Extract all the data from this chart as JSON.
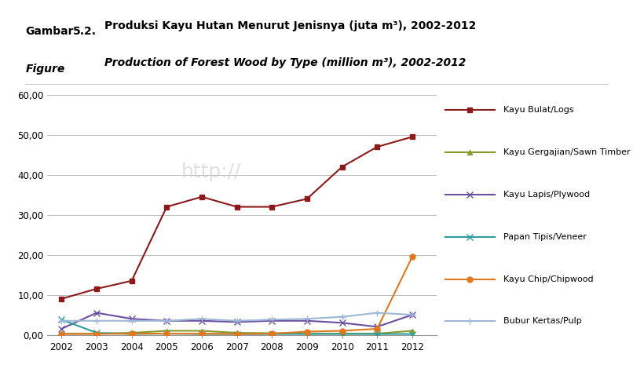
{
  "years": [
    2002,
    2003,
    2004,
    2005,
    2006,
    2007,
    2008,
    2009,
    2010,
    2011,
    2012
  ],
  "series": [
    {
      "name": "Kayu Bulat/Logs",
      "values": [
        9.0,
        11.5,
        13.5,
        32.0,
        34.5,
        32.0,
        32.0,
        34.0,
        42.0,
        47.0,
        49.5
      ],
      "color": "#8B1A1A",
      "marker": "s",
      "linewidth": 1.5,
      "markersize": 5
    },
    {
      "name": "Kayu Gergajian/Sawn Timber",
      "values": [
        0.3,
        0.3,
        0.5,
        1.0,
        1.0,
        0.5,
        0.4,
        0.3,
        0.3,
        0.3,
        1.0
      ],
      "color": "#8A9A2A",
      "marker": "^",
      "linewidth": 1.5,
      "markersize": 5
    },
    {
      "name": "Kayu Lapis/Plywood",
      "values": [
        1.5,
        5.5,
        4.0,
        3.5,
        3.5,
        3.2,
        3.5,
        3.5,
        3.0,
        2.0,
        5.0
      ],
      "color": "#6B4FA0",
      "marker": "x",
      "linewidth": 1.5,
      "markersize": 6
    },
    {
      "name": "Papan Tipis/Veneer",
      "values": [
        3.8,
        0.5,
        0.2,
        0.3,
        0.2,
        0.2,
        0.2,
        0.2,
        0.2,
        0.2,
        0.2
      ],
      "color": "#2A9D9D",
      "marker": "x",
      "linewidth": 1.5,
      "markersize": 6
    },
    {
      "name": "Kayu Chip/Chipwood",
      "values": [
        0.2,
        0.2,
        0.3,
        0.3,
        0.3,
        0.2,
        0.3,
        0.8,
        1.0,
        1.5,
        19.5
      ],
      "color": "#E07820",
      "marker": "o",
      "linewidth": 1.5,
      "markersize": 5
    },
    {
      "name": "Bubur Kertas/Pulp",
      "values": [
        3.5,
        3.5,
        3.5,
        3.5,
        4.0,
        3.5,
        3.8,
        4.0,
        4.5,
        5.5,
        5.0
      ],
      "color": "#A0B8D8",
      "marker": "+",
      "linewidth": 1.5,
      "markersize": 6
    }
  ],
  "ylim": [
    0,
    60
  ],
  "yticks": [
    0,
    10,
    20,
    30,
    40,
    50,
    60
  ],
  "ytick_labels": [
    "0,00",
    "10,00",
    "20,00",
    "30,00",
    "40,00",
    "50,00",
    "60,00"
  ],
  "background_color": "#FFFFFF",
  "grid_color": "#BBBBBB",
  "watermark": "http://",
  "header": {
    "label1": "Gambar",
    "label2": "Figure",
    "number": "5.2.",
    "title1": "Produksi Kayu Hutan Menurut Jenisnya (juta m³), 2002-2012",
    "title2": "Production of Forest Wood by Type (million m³), 2002-2012"
  }
}
